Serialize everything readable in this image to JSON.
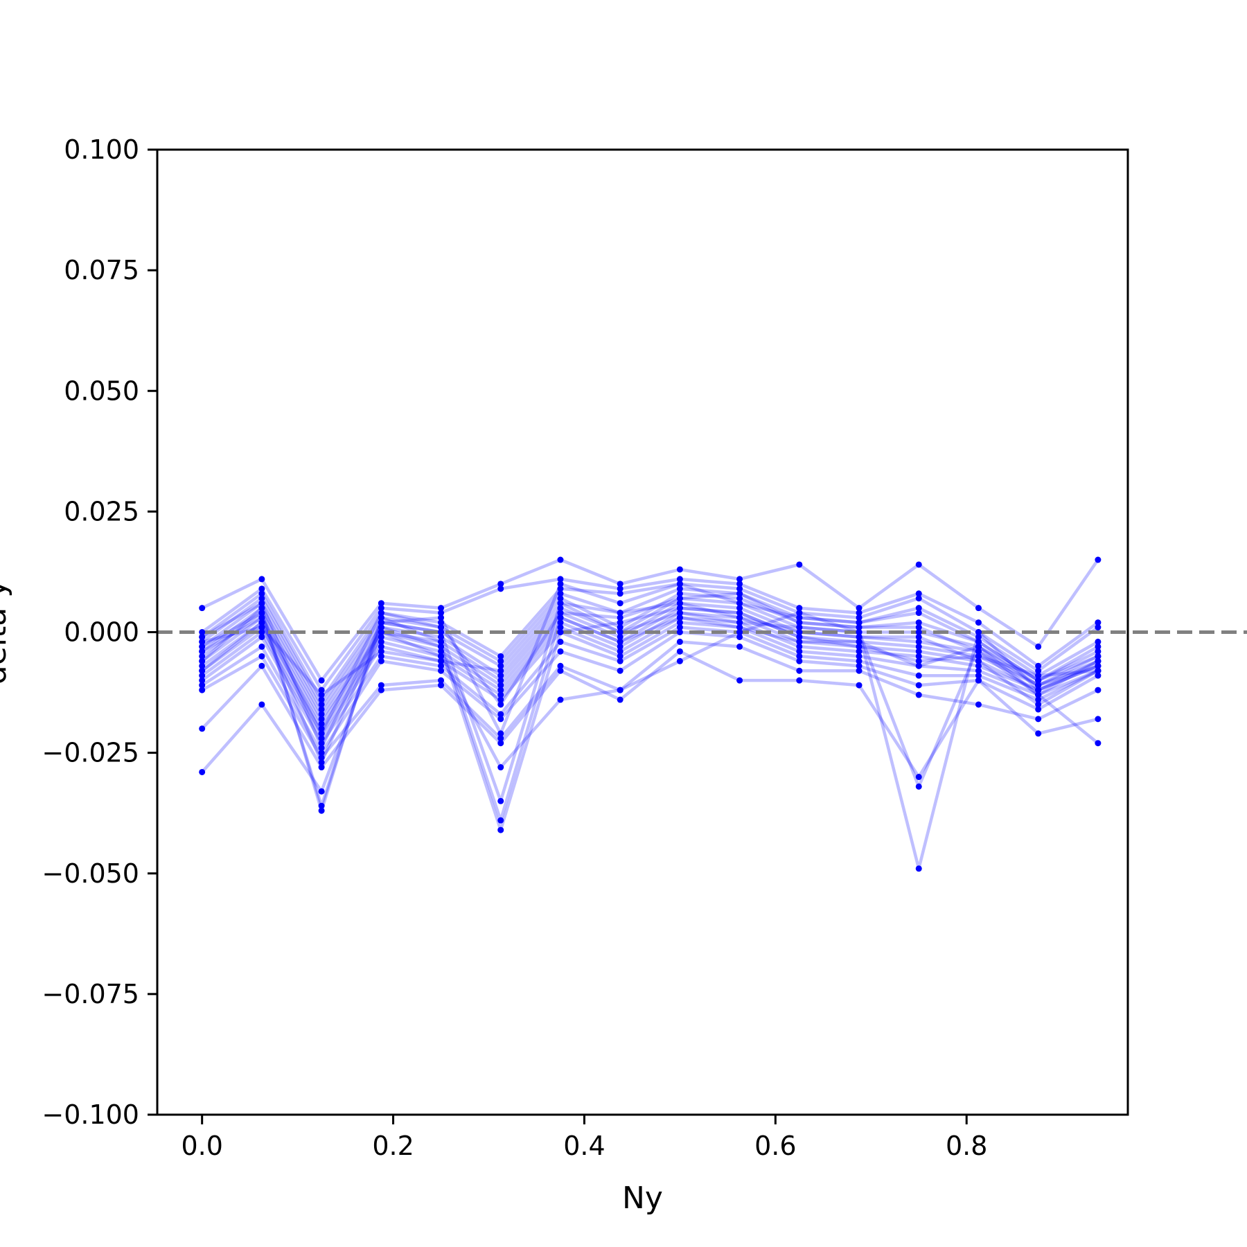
{
  "chart_data": {
    "type": "line",
    "title": "",
    "xlabel": "Ny",
    "ylabel": "delta y",
    "xlim": [
      -0.04688,
      0.96875
    ],
    "ylim": [
      -0.1,
      0.1
    ],
    "xticks": [
      0.0,
      0.2,
      0.4,
      0.6,
      0.8
    ],
    "xtick_labels": [
      "0.0",
      "0.2",
      "0.4",
      "0.6",
      "0.8"
    ],
    "yticks": [
      0.1,
      0.075,
      0.05,
      0.025,
      0.0,
      -0.025,
      -0.05,
      -0.075,
      -0.1
    ],
    "ytick_labels": [
      "0.100",
      "0.075",
      "0.050",
      "0.025",
      "0.000",
      "−0.025",
      "−0.050",
      "−0.075",
      "−0.100"
    ],
    "grid": false,
    "legend": "none",
    "series_color": "#0000ff",
    "line_alpha": 0.25,
    "reference_line": {
      "y": 0.0,
      "color": "#808080",
      "style": "dashed"
    },
    "x": [
      0.0,
      0.0625,
      0.125,
      0.1875,
      0.25,
      0.3125,
      0.375,
      0.4375,
      0.5,
      0.5625,
      0.625,
      0.6875,
      0.75,
      0.8125,
      0.875,
      0.9375
    ],
    "series": [
      {
        "values": [
          0.005,
          0.011,
          -0.01,
          0.006,
          0.005,
          0.01,
          0.015,
          0.01,
          0.013,
          0.011,
          0.014,
          0.005,
          0.014,
          0.005,
          -0.003,
          0.015
        ]
      },
      {
        "values": [
          0.0,
          0.009,
          -0.012,
          0.005,
          0.004,
          0.009,
          0.011,
          0.009,
          0.011,
          0.01,
          0.005,
          0.004,
          0.008,
          0.002,
          -0.007,
          0.002
        ]
      },
      {
        "values": [
          -0.001,
          0.008,
          -0.014,
          0.004,
          0.002,
          -0.005,
          0.009,
          0.008,
          0.01,
          0.009,
          0.004,
          0.003,
          0.007,
          0.0,
          -0.008,
          0.001
        ]
      },
      {
        "values": [
          -0.002,
          0.007,
          -0.015,
          0.003,
          0.001,
          -0.006,
          0.008,
          0.004,
          0.009,
          0.008,
          0.003,
          0.002,
          0.005,
          -0.001,
          -0.009,
          -0.002
        ]
      },
      {
        "values": [
          -0.003,
          0.006,
          -0.016,
          0.002,
          0.0,
          -0.007,
          0.007,
          0.001,
          0.008,
          0.007,
          0.002,
          0.001,
          0.002,
          -0.002,
          -0.01,
          -0.003
        ]
      },
      {
        "values": [
          -0.004,
          0.005,
          -0.017,
          0.001,
          -0.001,
          -0.009,
          0.005,
          0.0,
          0.007,
          0.006,
          0.001,
          0.0,
          0.0,
          -0.003,
          -0.01,
          -0.004
        ]
      },
      {
        "values": [
          -0.005,
          0.004,
          -0.018,
          0.0,
          -0.002,
          -0.01,
          0.004,
          -0.001,
          0.006,
          0.005,
          0.0,
          -0.001,
          -0.002,
          -0.004,
          -0.011,
          -0.005
        ]
      },
      {
        "values": [
          -0.006,
          0.003,
          -0.019,
          0.0,
          -0.003,
          -0.011,
          0.003,
          -0.002,
          0.005,
          0.004,
          -0.001,
          -0.002,
          -0.003,
          -0.005,
          -0.011,
          -0.006
        ]
      },
      {
        "values": [
          -0.007,
          0.002,
          -0.02,
          -0.001,
          -0.004,
          -0.012,
          0.002,
          -0.003,
          0.004,
          0.003,
          -0.002,
          -0.003,
          -0.004,
          -0.006,
          -0.012,
          -0.007
        ]
      },
      {
        "values": [
          -0.008,
          0.001,
          -0.021,
          -0.002,
          -0.005,
          -0.013,
          0.001,
          -0.004,
          0.003,
          0.002,
          -0.003,
          -0.004,
          -0.005,
          -0.007,
          -0.012,
          -0.007
        ]
      },
      {
        "values": [
          -0.009,
          0.0,
          -0.022,
          -0.003,
          -0.006,
          -0.014,
          0.0,
          -0.005,
          0.002,
          0.001,
          -0.004,
          -0.005,
          -0.007,
          -0.008,
          -0.013,
          -0.008
        ]
      },
      {
        "values": [
          -0.01,
          -0.001,
          -0.023,
          -0.005,
          -0.007,
          -0.017,
          -0.002,
          -0.006,
          0.001,
          0.0,
          -0.005,
          -0.006,
          -0.009,
          -0.009,
          -0.014,
          -0.008
        ]
      },
      {
        "values": [
          -0.011,
          -0.003,
          -0.025,
          -0.006,
          -0.008,
          -0.018,
          -0.004,
          -0.008,
          0.0,
          -0.001,
          -0.006,
          -0.007,
          -0.011,
          -0.01,
          -0.016,
          -0.009
        ]
      },
      {
        "values": [
          -0.012,
          -0.005,
          -0.026,
          -0.011,
          -0.01,
          -0.022,
          -0.007,
          -0.012,
          -0.002,
          -0.003,
          -0.008,
          -0.008,
          -0.013,
          -0.015,
          -0.018,
          -0.012
        ]
      },
      {
        "values": [
          -0.02,
          -0.007,
          -0.028,
          -0.012,
          -0.011,
          -0.023,
          -0.008,
          -0.014,
          -0.004,
          -0.01,
          -0.01,
          -0.011,
          -0.03,
          -0.01,
          -0.021,
          -0.018
        ]
      },
      {
        "values": [
          -0.029,
          -0.015,
          -0.033,
          0.0,
          -0.005,
          -0.028,
          -0.014,
          -0.012,
          -0.006,
          0.0,
          0.004,
          0.0,
          -0.032,
          -0.003,
          -0.013,
          -0.023
        ]
      },
      {
        "values": [
          -0.003,
          0.004,
          -0.036,
          0.002,
          0.0,
          -0.035,
          0.006,
          0.0,
          0.004,
          0.002,
          0.001,
          0.0,
          -0.049,
          0.0,
          -0.012,
          -0.006
        ]
      },
      {
        "values": [
          -0.006,
          0.005,
          -0.037,
          0.003,
          -0.002,
          -0.039,
          0.003,
          -0.002,
          0.003,
          0.001,
          -0.002,
          -0.002,
          -0.007,
          -0.003,
          -0.011,
          -0.007
        ]
      },
      {
        "values": [
          -0.008,
          0.002,
          -0.027,
          0.001,
          -0.003,
          -0.041,
          0.0,
          0.002,
          0.005,
          0.004,
          -0.001,
          -0.003,
          -0.006,
          -0.005,
          -0.009,
          -0.008
        ]
      },
      {
        "values": [
          -0.001,
          0.006,
          -0.024,
          0.002,
          0.003,
          -0.021,
          0.01,
          0.006,
          0.01,
          0.006,
          0.003,
          0.002,
          0.004,
          -0.002,
          -0.01,
          -0.005
        ]
      },
      {
        "values": [
          -0.004,
          0.003,
          -0.021,
          0.004,
          0.001,
          -0.015,
          0.004,
          0.003,
          0.007,
          0.008,
          0.002,
          0.001,
          0.001,
          -0.004,
          -0.013,
          -0.006
        ]
      },
      {
        "values": [
          -0.002,
          0.001,
          -0.013,
          -0.004,
          -0.006,
          -0.008,
          0.006,
          0.004,
          0.006,
          0.003,
          0.0,
          -0.001,
          -0.001,
          -0.006,
          -0.015,
          -0.008
        ]
      }
    ]
  }
}
